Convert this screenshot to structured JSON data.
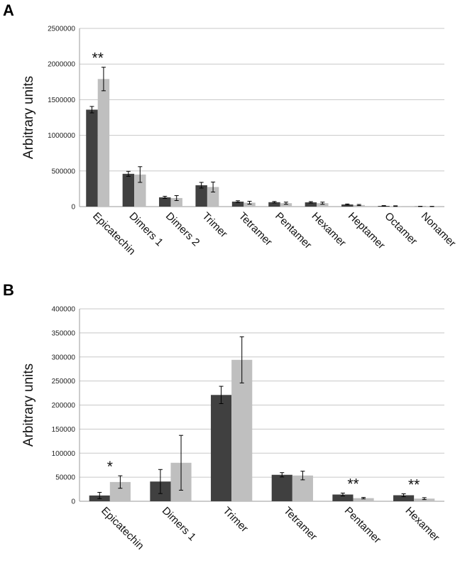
{
  "figure": {
    "panel_a_letter": "A",
    "panel_b_letter": "B"
  },
  "chart_data": [
    {
      "type": "bar",
      "panel": "A",
      "ylabel": "Arbitrary units",
      "xlabel": "",
      "ylim": [
        0,
        2500000
      ],
      "yticks": [
        0,
        500000,
        1000000,
        1500000,
        2000000,
        2500000
      ],
      "grid": true,
      "categories": [
        "Epicatechin",
        "Dimers 1",
        "Dimers 2",
        "Trimer",
        "Tetramer",
        "Pentamer",
        "Hexamer",
        "Heptamer",
        "Octamer",
        "Nonamer"
      ],
      "series": [
        {
          "color": "#404040",
          "values": [
            1360000,
            460000,
            130000,
            300000,
            70000,
            62000,
            60000,
            30000,
            10000,
            3000
          ],
          "errors": [
            45000,
            35000,
            15000,
            40000,
            12000,
            10000,
            10000,
            7000,
            4000,
            2000
          ]
        },
        {
          "color": "#bfbfbf",
          "values": [
            1790000,
            450000,
            120000,
            275000,
            55000,
            48000,
            48000,
            22000,
            7000,
            2000
          ],
          "errors": [
            165000,
            110000,
            35000,
            70000,
            20000,
            15000,
            15000,
            8000,
            4000,
            2000
          ]
        }
      ],
      "annotations": [
        {
          "category": "Epicatechin",
          "text": "**"
        }
      ]
    },
    {
      "type": "bar",
      "panel": "B",
      "ylabel": "Arbitrary units",
      "xlabel": "",
      "ylim": [
        0,
        400000
      ],
      "yticks": [
        0,
        50000,
        100000,
        150000,
        200000,
        250000,
        300000,
        350000,
        400000
      ],
      "grid": true,
      "categories": [
        "Epicatechin",
        "Dimers 1",
        "Trimer",
        "Tetramer",
        "Pentamer",
        "Hexamer"
      ],
      "series": [
        {
          "color": "#404040",
          "values": [
            12000,
            41000,
            221000,
            55000,
            14000,
            12500
          ],
          "errors": [
            6500,
            25000,
            18000,
            4500,
            3000,
            3000
          ]
        },
        {
          "color": "#bfbfbf",
          "values": [
            40000,
            80000,
            294000,
            53500,
            6500,
            5500
          ],
          "errors": [
            13000,
            57000,
            48000,
            9000,
            1500,
            2000
          ]
        }
      ],
      "annotations": [
        {
          "category": "Epicatechin",
          "text": "*"
        },
        {
          "category": "Pentamer",
          "text": "**"
        },
        {
          "category": "Hexamer",
          "text": "**"
        }
      ]
    }
  ]
}
